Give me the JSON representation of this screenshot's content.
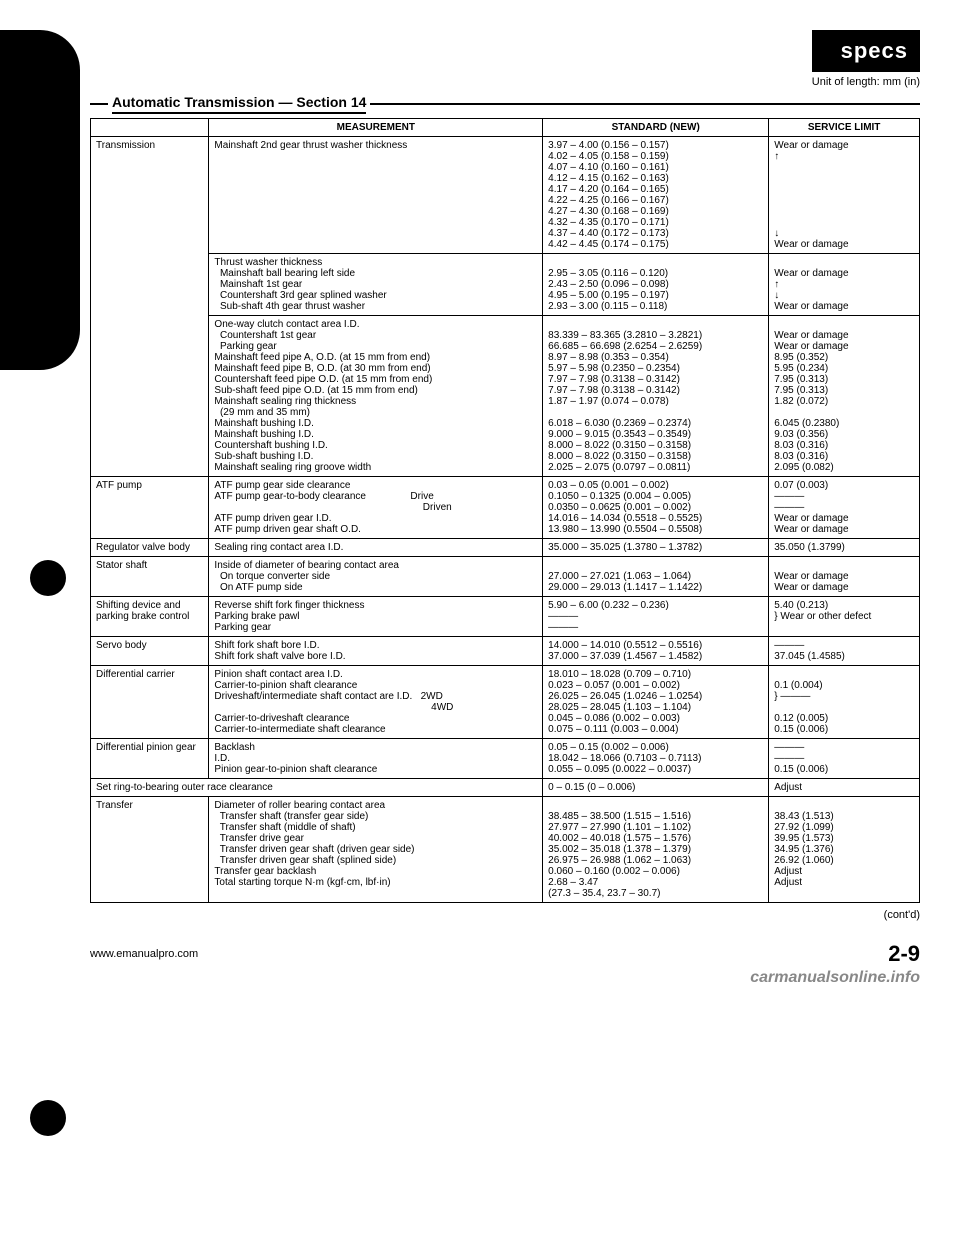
{
  "header": {
    "specs_label": "specs",
    "unit_label": "Unit of length: mm (in)",
    "section_title": "Automatic Transmission — Section 14"
  },
  "columns": [
    "",
    "MEASUREMENT",
    "STANDARD (NEW)",
    "SERVICE LIMIT"
  ],
  "rows": [
    {
      "component": "Transmission",
      "blocks": [
        {
          "meas": [
            "Mainshaft 2nd gear thrust washer thickness"
          ],
          "std": [
            "3.97 – 4.00 (0.156 – 0.157)",
            "4.02 – 4.05 (0.158 – 0.159)",
            "4.07 – 4.10 (0.160 – 0.161)",
            "4.12 – 4.15 (0.162 – 0.163)",
            "4.17 – 4.20 (0.164 – 0.165)",
            "4.22 – 4.25 (0.166 – 0.167)",
            "4.27 – 4.30 (0.168 – 0.169)",
            "4.32 – 4.35 (0.170 – 0.171)",
            "4.37 – 4.40 (0.172 – 0.173)",
            "4.42 – 4.45 (0.174 – 0.175)"
          ],
          "lim": [
            "Wear or damage",
            "↑",
            "",
            "",
            "",
            "",
            "",
            "",
            "↓",
            "Wear or damage"
          ]
        },
        {
          "meas": [
            "Thrust washer thickness",
            "  Mainshaft ball bearing left side",
            "  Mainshaft 1st gear",
            "  Countershaft 3rd gear splined washer",
            "  Sub-shaft 4th gear thrust washer"
          ],
          "std": [
            "",
            "2.95 – 3.05 (0.116 – 0.120)",
            "2.43 – 2.50 (0.096 – 0.098)",
            "4.95 – 5.00 (0.195 – 0.197)",
            "2.93 – 3.00 (0.115 – 0.118)"
          ],
          "lim": [
            "",
            "Wear or damage",
            "↑",
            "↓",
            "Wear or damage"
          ]
        },
        {
          "meas": [
            "One-way clutch contact area I.D.",
            "  Countershaft 1st gear",
            "  Parking gear",
            "Mainshaft feed pipe A, O.D. (at 15 mm from end)",
            "Mainshaft feed pipe B, O.D. (at 30 mm from end)",
            "Countershaft feed pipe O.D. (at 15 mm from end)",
            "Sub-shaft feed pipe O.D. (at 15 mm from end)",
            "Mainshaft sealing ring thickness",
            "  (29 mm and 35 mm)",
            "Mainshaft bushing I.D.",
            "Mainshaft bushing I.D.",
            "Countershaft bushing I.D.",
            "Sub-shaft bushing I.D.",
            "Mainshaft sealing ring groove width"
          ],
          "std": [
            "",
            "83.339 – 83.365 (3.2810 – 3.2821)",
            "66.685 – 66.698 (2.6254 – 2.6259)",
            "8.97 – 8.98 (0.353 – 0.354)",
            "5.97 – 5.98 (0.2350 – 0.2354)",
            "7.97 – 7.98 (0.3138 – 0.3142)",
            "7.97 – 7.98 (0.3138 – 0.3142)",
            "1.87 – 1.97 (0.074 – 0.078)",
            "",
            "6.018 – 6.030 (0.2369 – 0.2374)",
            "9.000 – 9.015 (0.3543 – 0.3549)",
            "8.000 – 8.022 (0.3150 – 0.3158)",
            "8.000 – 8.022 (0.3150 – 0.3158)",
            "2.025 – 2.075 (0.0797 – 0.0811)"
          ],
          "lim": [
            "",
            "Wear or damage",
            "Wear or damage",
            "8.95 (0.352)",
            "5.95 (0.234)",
            "7.95 (0.313)",
            "7.95 (0.313)",
            "1.82 (0.072)",
            "",
            "6.045 (0.2380)",
            "9.03 (0.356)",
            "8.03 (0.316)",
            "8.03 (0.316)",
            "2.095 (0.082)"
          ]
        }
      ]
    },
    {
      "component": "ATF pump",
      "blocks": [
        {
          "meas": [
            "ATF pump gear side clearance",
            "ATF pump gear-to-body clearance                Drive",
            "                                                                           Driven",
            "ATF pump driven gear I.D.",
            "ATF pump driven gear shaft O.D."
          ],
          "std": [
            "0.03 – 0.05 (0.001 – 0.002)",
            "0.1050 – 0.1325 (0.004 – 0.005)",
            "0.0350 – 0.0625 (0.001 – 0.002)",
            "14.016 – 14.034 (0.5518 – 0.5525)",
            "13.980 – 13.990 (0.5504 – 0.5508)"
          ],
          "lim": [
            "0.07 (0.003)",
            "———",
            "———",
            "Wear or damage",
            "Wear or damage"
          ]
        }
      ]
    },
    {
      "component": "Regulator valve body",
      "blocks": [
        {
          "meas": [
            "Sealing ring contact area I.D."
          ],
          "std": [
            "35.000 – 35.025 (1.3780 – 1.3782)"
          ],
          "lim": [
            "35.050 (1.3799)"
          ]
        }
      ]
    },
    {
      "component": "Stator shaft",
      "blocks": [
        {
          "meas": [
            "Inside of diameter of bearing contact area",
            "  On torque converter side",
            "  On ATF pump side"
          ],
          "std": [
            "",
            "27.000 – 27.021 (1.063 – 1.064)",
            "29.000 – 29.013 (1.1417 – 1.1422)"
          ],
          "lim": [
            "",
            "Wear or damage",
            "Wear or damage"
          ]
        }
      ]
    },
    {
      "component": "Shifting device and parking brake control",
      "blocks": [
        {
          "meas": [
            "Reverse shift fork finger thickness",
            "Parking brake pawl",
            "Parking gear"
          ],
          "std": [
            "5.90 – 6.00 (0.232 – 0.236)",
            "———",
            "———"
          ],
          "lim": [
            "5.40 (0.213)",
            "} Wear or other defect",
            ""
          ]
        }
      ]
    },
    {
      "component": "Servo body",
      "blocks": [
        {
          "meas": [
            "Shift fork shaft bore I.D.",
            "Shift fork shaft valve bore I.D."
          ],
          "std": [
            "14.000 – 14.010 (0.5512 – 0.5516)",
            "37.000 – 37.039 (1.4567 – 1.4582)"
          ],
          "lim": [
            "———",
            "37.045 (1.4585)"
          ]
        }
      ]
    },
    {
      "component": "Differential carrier",
      "blocks": [
        {
          "meas": [
            "Pinion shaft contact area I.D.",
            "Carrier-to-pinion shaft clearance",
            "Driveshaft/intermediate shaft contact are I.D.   2WD",
            "                                                                              4WD",
            "Carrier-to-driveshaft clearance",
            "Carrier-to-intermediate shaft clearance"
          ],
          "std": [
            "18.010 – 18.028 (0.709 – 0.710)",
            "0.023 – 0.057 (0.001 – 0.002)",
            "26.025 – 26.045 (1.0246 – 1.0254)",
            "28.025 – 28.045 (1.103 – 1.104)",
            "0.045 – 0.086 (0.002 – 0.003)",
            "0.075 – 0.111 (0.003 – 0.004)"
          ],
          "lim": [
            "",
            "0.1 (0.004)",
            "} ———",
            "",
            "0.12 (0.005)",
            "0.15 (0.006)"
          ]
        }
      ]
    },
    {
      "component": "Differential pinion gear",
      "blocks": [
        {
          "meas": [
            "Backlash",
            "I.D.",
            "Pinion gear-to-pinion shaft clearance"
          ],
          "std": [
            "0.05 – 0.15 (0.002 – 0.006)",
            "18.042 – 18.066 (0.7103 – 0.7113)",
            "0.055 – 0.095 (0.0022 – 0.0037)"
          ],
          "lim": [
            "———",
            "———",
            "0.15 (0.006)"
          ]
        }
      ]
    },
    {
      "component": "Set ring-to-bearing outer race clearance",
      "fullrow": true,
      "blocks": [
        {
          "meas": [
            ""
          ],
          "std": [
            "0 – 0.15 (0 – 0.006)"
          ],
          "lim": [
            "Adjust"
          ]
        }
      ]
    },
    {
      "component": "Transfer",
      "blocks": [
        {
          "meas": [
            "Diameter of roller bearing contact area",
            "  Transfer shaft (transfer gear side)",
            "  Transfer shaft (middle of shaft)",
            "  Transfer drive gear",
            "  Transfer driven gear shaft (driven gear side)",
            "  Transfer driven gear shaft (splined side)",
            "Transfer gear backlash",
            "Total starting torque N·m (kgf·cm, lbf·in)"
          ],
          "std": [
            "",
            "38.485 – 38.500 (1.515 – 1.516)",
            "27.977 – 27.990 (1.101 – 1.102)",
            "40.002 – 40.018 (1.575 – 1.576)",
            "35.002 – 35.018 (1.378 – 1.379)",
            "26.975 – 26.988 (1.062 – 1.063)",
            "0.060 – 0.160 (0.002 – 0.006)",
            "2.68 – 3.47",
            "(27.3 – 35.4, 23.7 – 30.7)"
          ],
          "lim": [
            "",
            "38.43 (1.513)",
            "27.92 (1.099)",
            "39.95 (1.573)",
            "34.95 (1.376)",
            "26.92 (1.060)",
            "Adjust",
            "Adjust",
            ""
          ]
        }
      ]
    }
  ],
  "footer": {
    "contd": "(cont'd)",
    "url": "www.emanualpro.com",
    "page": "2-9",
    "watermark": "carmanualsonline.info"
  }
}
